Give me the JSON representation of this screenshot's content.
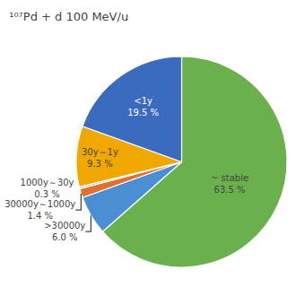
{
  "chart_data": {
    "type": "pie",
    "title": "¹⁰⁷Pd + d 100 MeV/u",
    "categories": [
      "~ stable",
      ">30000y",
      "30000y～1000y",
      "1000y～30y",
      "30y～1y",
      "<1y"
    ],
    "values": [
      63.5,
      6.0,
      1.4,
      0.3,
      9.3,
      19.5
    ],
    "value_labels": [
      "63.5 %",
      "6.0 %",
      "1.4 %",
      "0.3 %",
      "9.3 %",
      "19.5 %"
    ],
    "colors": [
      "#6ab04c",
      "#4a8fd4",
      "#e07030",
      "#b0b8c0",
      "#f0a800",
      "#3a6bbf"
    ],
    "data_labels": true
  }
}
